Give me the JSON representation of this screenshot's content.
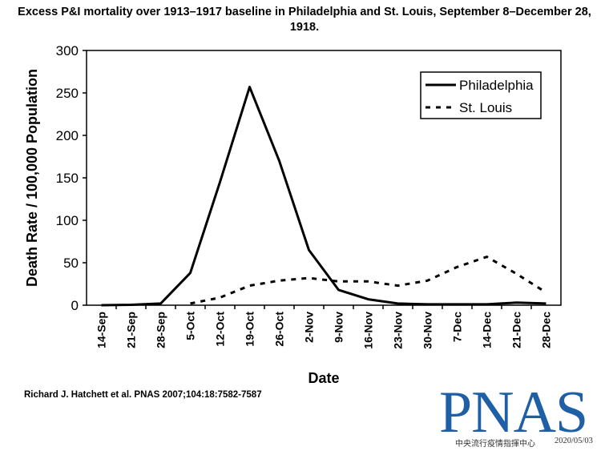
{
  "chart_data": {
    "type": "line",
    "title": "Excess P&I mortality over 1913–1917 baseline in Philadelphia and St. Louis, September 8–December 28, 1918.",
    "xlabel": "Date",
    "ylabel": "Death Rate / 100,000 Population",
    "ylim": [
      0,
      300
    ],
    "yticks": [
      0,
      50,
      100,
      150,
      200,
      250,
      300
    ],
    "categories": [
      "14-Sep",
      "21-Sep",
      "28-Sep",
      "5-Oct",
      "12-Oct",
      "19-Oct",
      "26-Oct",
      "2-Nov",
      "9-Nov",
      "16-Nov",
      "23-Nov",
      "30-Nov",
      "7-Dec",
      "14-Dec",
      "21-Dec",
      "28-Dec"
    ],
    "grid": false,
    "legend": "top-right",
    "series": [
      {
        "name": "Philadelphia",
        "style": "solid",
        "color": "#000000",
        "values": [
          0,
          0.5,
          2,
          38,
          145,
          257,
          170,
          65,
          18,
          7,
          2,
          1,
          1,
          1,
          3,
          2
        ]
      },
      {
        "name": "St. Louis",
        "style": "dashed",
        "color": "#000000",
        "values": [
          null,
          null,
          null,
          2,
          9,
          23,
          29,
          32,
          28,
          28,
          23,
          29,
          45,
          57,
          37,
          15
        ]
      }
    ]
  },
  "citation": "Richard J. Hatchett et al. PNAS 2007;104:18:7582-7587",
  "logo": {
    "text": "PNAS",
    "color": "#1f5fa6"
  },
  "footer": {
    "note": "中央流行疫情指揮中心",
    "date": "2020/05/03"
  }
}
